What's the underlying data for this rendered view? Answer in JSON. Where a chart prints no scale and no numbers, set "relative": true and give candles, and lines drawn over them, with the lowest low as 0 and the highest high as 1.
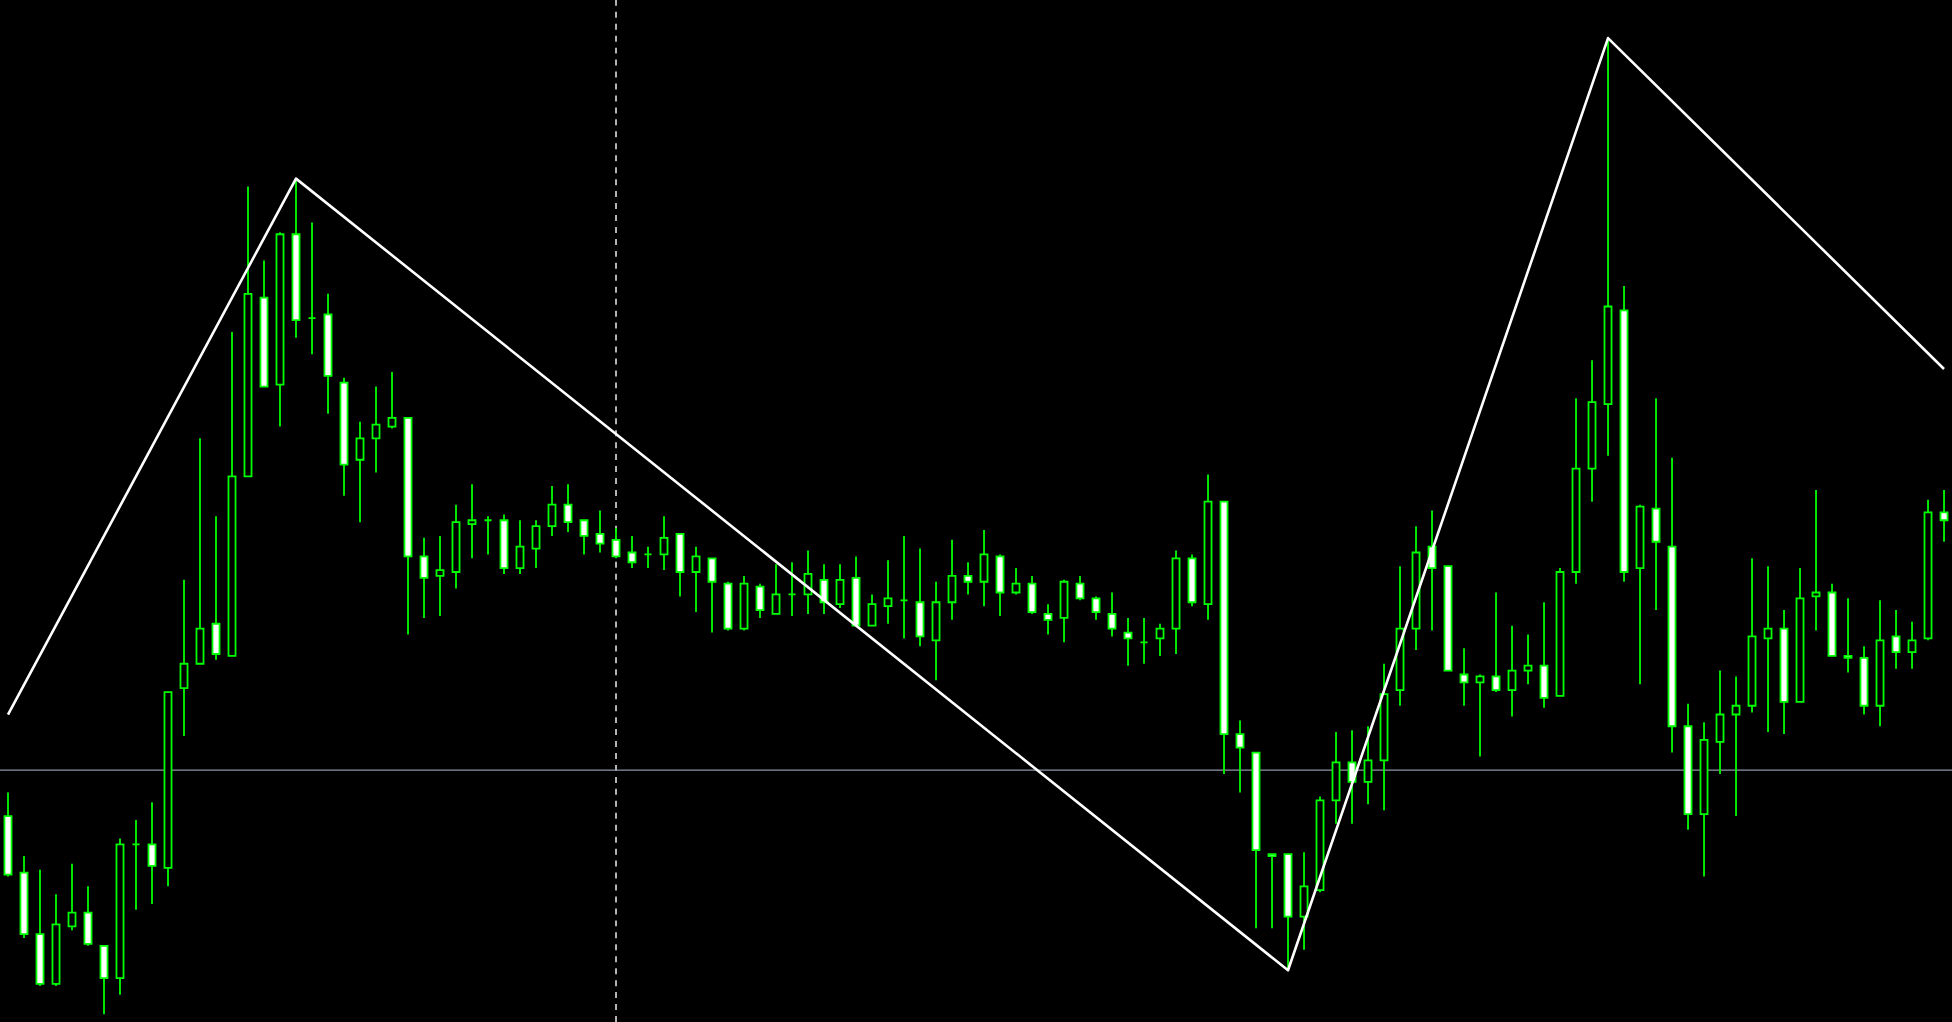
{
  "chart_data": {
    "type": "candlestick",
    "relative": true,
    "color": "#00ff00",
    "categories": [
      null,
      null,
      null,
      null,
      null,
      null,
      null,
      null,
      null,
      null,
      null,
      null,
      null,
      null,
      null,
      null,
      null,
      null,
      null,
      null,
      null,
      null,
      null,
      null,
      null,
      null,
      null,
      null,
      null,
      null,
      null,
      null,
      null,
      null,
      null,
      null,
      null,
      null,
      null,
      null,
      null,
      null,
      null,
      null,
      null,
      null,
      null,
      null,
      null,
      null,
      null,
      null,
      null,
      null,
      null,
      null,
      null,
      null,
      null,
      null,
      null,
      null,
      null,
      null,
      null,
      null,
      null,
      null,
      null,
      null,
      null,
      null,
      null,
      null,
      null,
      null,
      null,
      null,
      null,
      null,
      null,
      null,
      null,
      null,
      null,
      null,
      null,
      null,
      null,
      null,
      null,
      null,
      null,
      null,
      null,
      null,
      null,
      null,
      null,
      null,
      null,
      null,
      null,
      null,
      null,
      null,
      null,
      null,
      null,
      null,
      null,
      null,
      null,
      null,
      null,
      null,
      null,
      null,
      null,
      null,
      null,
      null
    ],
    "ohlc": [
      [
        0.203,
        0.227,
        0.141,
        0.143
      ],
      [
        0.145,
        0.162,
        0.078,
        0.082
      ],
      [
        0.082,
        0.148,
        0.029,
        0.031
      ],
      [
        0.031,
        0.123,
        0.029,
        0.092
      ],
      [
        0.09,
        0.154,
        0.086,
        0.104
      ],
      [
        0.104,
        0.131,
        0.07,
        0.072
      ],
      [
        0.07,
        0.07,
        0,
        0.037
      ],
      [
        0.037,
        0.18,
        0.02,
        0.174
      ],
      [
        0.174,
        0.199,
        0.107,
        0.174
      ],
      [
        0.174,
        0.217,
        0.113,
        0.152
      ],
      [
        0.15,
        0.33,
        0.131,
        0.33
      ],
      [
        0.334,
        0.445,
        0.285,
        0.359
      ],
      [
        0.359,
        0.59,
        0.359,
        0.395
      ],
      [
        0.4,
        0.51,
        0.363,
        0.369
      ],
      [
        0.367,
        0.699,
        0.367,
        0.551
      ],
      [
        0.551,
        0.848,
        0.551,
        0.738
      ],
      [
        0.734,
        0.772,
        0.643,
        0.643
      ],
      [
        0.645,
        0.801,
        0.602,
        0.799
      ],
      [
        0.799,
        0.856,
        0.693,
        0.711
      ],
      [
        0.713,
        0.811,
        0.676,
        0.713
      ],
      [
        0.717,
        0.738,
        0.615,
        0.654
      ],
      [
        0.647,
        0.652,
        0.531,
        0.563
      ],
      [
        0.568,
        0.607,
        0.504,
        0.59
      ],
      [
        0.59,
        0.643,
        0.555,
        0.604
      ],
      [
        0.602,
        0.658,
        0.6,
        0.611
      ],
      [
        0.611,
        0.611,
        0.389,
        0.469
      ],
      [
        0.469,
        0.488,
        0.406,
        0.447
      ],
      [
        0.449,
        0.49,
        0.408,
        0.455
      ],
      [
        0.453,
        0.522,
        0.436,
        0.504
      ],
      [
        0.502,
        0.543,
        0.467,
        0.506
      ],
      [
        0.506,
        0.51,
        0.471,
        0.506
      ],
      [
        0.506,
        0.512,
        0.451,
        0.457
      ],
      [
        0.457,
        0.506,
        0.451,
        0.479
      ],
      [
        0.477,
        0.506,
        0.457,
        0.5
      ],
      [
        0.5,
        0.541,
        0.49,
        0.522
      ],
      [
        0.522,
        0.543,
        0.494,
        0.504
      ],
      [
        0.506,
        0.506,
        0.471,
        0.49
      ],
      [
        0.492,
        0.516,
        0.473,
        0.482
      ],
      [
        0.486,
        0.498,
        0.467,
        0.469
      ],
      [
        0.473,
        0.49,
        0.457,
        0.463
      ],
      [
        0.471,
        0.479,
        0.457,
        0.471
      ],
      [
        0.471,
        0.51,
        0.455,
        0.488
      ],
      [
        0.492,
        0.492,
        0.428,
        0.453
      ],
      [
        0.453,
        0.479,
        0.412,
        0.469
      ],
      [
        0.467,
        0.467,
        0.391,
        0.443
      ],
      [
        0.441,
        0.443,
        0.393,
        0.395
      ],
      [
        0.395,
        0.449,
        0.393,
        0.441
      ],
      [
        0.438,
        0.441,
        0.406,
        0.414
      ],
      [
        0.41,
        0.461,
        0.41,
        0.43
      ],
      [
        0.43,
        0.463,
        0.408,
        0.43
      ],
      [
        0.43,
        0.475,
        0.41,
        0.451
      ],
      [
        0.445,
        0.461,
        0.41,
        0.422
      ],
      [
        0.42,
        0.461,
        0.416,
        0.445
      ],
      [
        0.447,
        0.469,
        0.398,
        0.398
      ],
      [
        0.398,
        0.43,
        0.398,
        0.42
      ],
      [
        0.418,
        0.465,
        0.4,
        0.426
      ],
      [
        0.424,
        0.49,
        0.385,
        0.424
      ],
      [
        0.422,
        0.477,
        0.377,
        0.387
      ],
      [
        0.383,
        0.443,
        0.342,
        0.422
      ],
      [
        0.422,
        0.486,
        0.404,
        0.449
      ],
      [
        0.449,
        0.463,
        0.43,
        0.443
      ],
      [
        0.443,
        0.496,
        0.418,
        0.471
      ],
      [
        0.469,
        0.471,
        0.408,
        0.432
      ],
      [
        0.432,
        0.457,
        0.43,
        0.441
      ],
      [
        0.441,
        0.449,
        0.41,
        0.412
      ],
      [
        0.41,
        0.42,
        0.389,
        0.404
      ],
      [
        0.406,
        0.445,
        0.381,
        0.443
      ],
      [
        0.441,
        0.449,
        0.424,
        0.426
      ],
      [
        0.426,
        0.428,
        0.404,
        0.412
      ],
      [
        0.41,
        0.432,
        0.387,
        0.395
      ],
      [
        0.391,
        0.406,
        0.357,
        0.385
      ],
      [
        0.381,
        0.406,
        0.359,
        0.381
      ],
      [
        0.385,
        0.4,
        0.367,
        0.395
      ],
      [
        0.395,
        0.475,
        0.369,
        0.467
      ],
      [
        0.467,
        0.471,
        0.418,
        0.422
      ],
      [
        0.42,
        0.553,
        0.404,
        0.525
      ],
      [
        0.525,
        0.525,
        0.246,
        0.287
      ],
      [
        0.287,
        0.301,
        0.227,
        0.273
      ],
      [
        0.268,
        0.268,
        0.088,
        0.168
      ],
      [
        0.164,
        0.164,
        0.088,
        0.162
      ],
      [
        0.164,
        0.164,
        0.045,
        0.1
      ],
      [
        0.1,
        0.166,
        0.066,
        0.131
      ],
      [
        0.127,
        0.223,
        0.125,
        0.219
      ],
      [
        0.219,
        0.289,
        0.195,
        0.258
      ],
      [
        0.258,
        0.291,
        0.195,
        0.238
      ],
      [
        0.238,
        0.295,
        0.215,
        0.26
      ],
      [
        0.26,
        0.359,
        0.209,
        0.328
      ],
      [
        0.332,
        0.459,
        0.316,
        0.395
      ],
      [
        0.395,
        0.5,
        0.373,
        0.473
      ],
      [
        0.479,
        0.516,
        0.393,
        0.457
      ],
      [
        0.459,
        0.459,
        0.352,
        0.352
      ],
      [
        0.348,
        0.375,
        0.316,
        0.34
      ],
      [
        0.34,
        0.348,
        0.264,
        0.346
      ],
      [
        0.346,
        0.432,
        0.33,
        0.332
      ],
      [
        0.332,
        0.398,
        0.305,
        0.352
      ],
      [
        0.352,
        0.389,
        0.338,
        0.357
      ],
      [
        0.357,
        0.422,
        0.314,
        0.324
      ],
      [
        0.326,
        0.457,
        0.326,
        0.453
      ],
      [
        0.453,
        0.631,
        0.441,
        0.559
      ],
      [
        0.559,
        0.67,
        0.525,
        0.627
      ],
      [
        0.625,
        1.0,
        0.572,
        0.725
      ],
      [
        0.721,
        0.746,
        0.443,
        0.453
      ],
      [
        0.457,
        0.522,
        0.338,
        0.52
      ],
      [
        0.518,
        0.631,
        0.414,
        0.484
      ],
      [
        0.479,
        0.57,
        0.268,
        0.295
      ],
      [
        0.295,
        0.318,
        0.189,
        0.205
      ],
      [
        0.205,
        0.299,
        0.141,
        0.281
      ],
      [
        0.279,
        0.352,
        0.246,
        0.307
      ],
      [
        0.307,
        0.346,
        0.203,
        0.316
      ],
      [
        0.316,
        0.467,
        0.309,
        0.387
      ],
      [
        0.385,
        0.459,
        0.289,
        0.395
      ],
      [
        0.395,
        0.414,
        0.287,
        0.32
      ],
      [
        0.32,
        0.457,
        0.32,
        0.426
      ],
      [
        0.428,
        0.537,
        0.393,
        0.432
      ],
      [
        0.432,
        0.441,
        0.367,
        0.367
      ],
      [
        0.367,
        0.426,
        0.35,
        0.365
      ],
      [
        0.365,
        0.377,
        0.307,
        0.316
      ],
      [
        0.316,
        0.424,
        0.295,
        0.383
      ],
      [
        0.387,
        0.414,
        0.354,
        0.371
      ],
      [
        0.371,
        0.402,
        0.354,
        0.383
      ],
      [
        0.385,
        0.527,
        0.383,
        0.514
      ],
      [
        0.514,
        0.537,
        0.484,
        0.506
      ]
    ],
    "series": [
      {
        "type": "line",
        "color": "#ffffff",
        "values": [
          0.307,
          null,
          null,
          null,
          null,
          null,
          null,
          null,
          null,
          null,
          null,
          null,
          null,
          null,
          null,
          null,
          null,
          null,
          0.856,
          null,
          null,
          null,
          null,
          null,
          null,
          null,
          null,
          null,
          null,
          null,
          null,
          null,
          null,
          null,
          null,
          null,
          null,
          null,
          null,
          null,
          null,
          null,
          null,
          null,
          null,
          null,
          null,
          null,
          null,
          null,
          null,
          null,
          null,
          null,
          null,
          null,
          null,
          null,
          null,
          null,
          null,
          null,
          null,
          null,
          null,
          null,
          null,
          null,
          null,
          null,
          null,
          null,
          null,
          null,
          null,
          null,
          null,
          null,
          null,
          null,
          0.045,
          null,
          null,
          null,
          null,
          null,
          null,
          null,
          null,
          null,
          null,
          null,
          null,
          null,
          null,
          null,
          null,
          null,
          null,
          null,
          1.0,
          null,
          null,
          null,
          null,
          null,
          null,
          null,
          null,
          null,
          null,
          null,
          null,
          null,
          null,
          null,
          null,
          null,
          null,
          null,
          null,
          0.661
        ]
      }
    ],
    "ref_lines": [
      {
        "axis": "y",
        "value": 0.25,
        "color": "#8c96a8",
        "line_style": "solid"
      }
    ]
  }
}
